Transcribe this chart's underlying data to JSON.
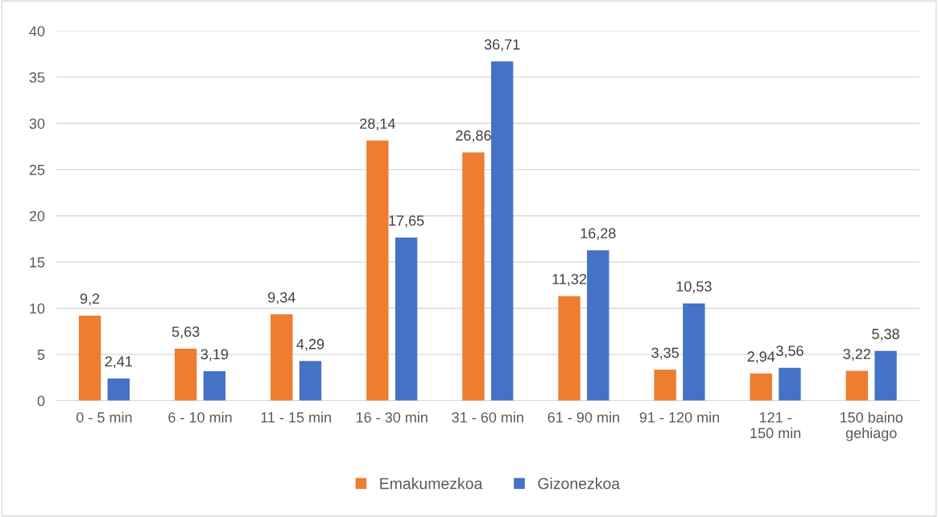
{
  "chart_data": {
    "type": "bar",
    "categories": [
      "0 - 5 min",
      "6 - 10 min",
      "11 - 15 min",
      "16 - 30 min",
      "31 - 60 min",
      "61 - 90 min",
      "91 - 120 min",
      "121 - 150 min",
      "150 baino gehiago"
    ],
    "series": [
      {
        "name": "Emakumezkoa",
        "color": "#ed7d31",
        "values": [
          9.2,
          5.63,
          9.34,
          28.14,
          26.86,
          11.32,
          3.35,
          2.94,
          3.22
        ],
        "value_labels": [
          "9,2",
          "5,63",
          "9,34",
          "28,14",
          "26,86",
          "11,32",
          "3,35",
          "2,94",
          "3,22"
        ]
      },
      {
        "name": "Gizonezkoa",
        "color": "#4472c4",
        "values": [
          2.41,
          3.19,
          4.29,
          17.65,
          36.71,
          16.28,
          10.53,
          3.56,
          5.38
        ],
        "value_labels": [
          "2,41",
          "3,19",
          "4,29",
          "17,65",
          "36,71",
          "16,28",
          "10,53",
          "3,56",
          "5,38"
        ]
      }
    ],
    "ylim": [
      0,
      40
    ],
    "yticks": [
      0,
      5,
      10,
      15,
      20,
      25,
      30,
      35,
      40
    ],
    "grid": "y",
    "legend": "bottom"
  }
}
